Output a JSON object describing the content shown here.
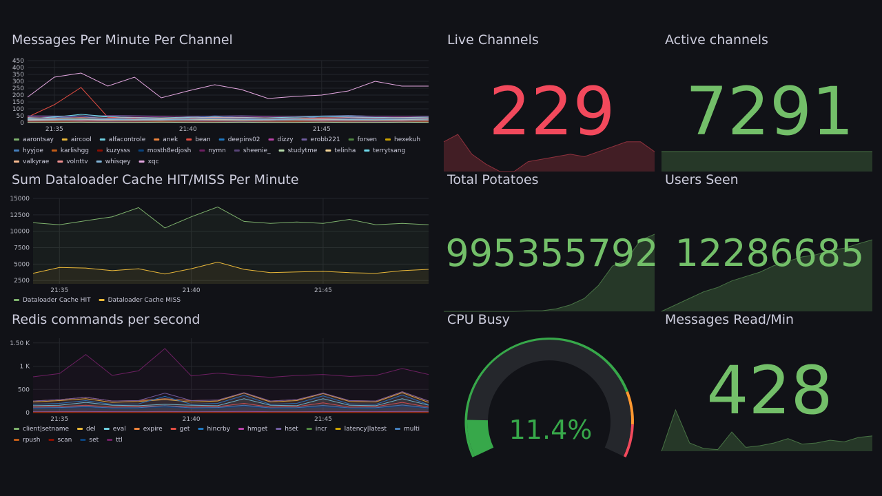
{
  "chart_data": [
    {
      "type": "line",
      "title": "Messages Per Minute Per Channel",
      "x": [
        "21:34",
        "21:35",
        "21:36",
        "21:37",
        "21:38",
        "21:39",
        "21:40",
        "21:41",
        "21:42",
        "21:43",
        "21:44",
        "21:45",
        "21:46",
        "21:47",
        "21:48",
        "21:49"
      ],
      "xticks": [
        "21:35",
        "21:40",
        "21:45"
      ],
      "ylim": [
        0,
        450
      ],
      "yticks": [
        0,
        50,
        100,
        150,
        200,
        250,
        300,
        350,
        400,
        450
      ],
      "grid": true,
      "fill": false,
      "series": [
        {
          "name": "aarontsay",
          "color": "#7eb26d",
          "values": [
            30,
            28,
            32,
            30,
            29,
            31,
            30,
            28,
            27,
            29,
            30,
            31,
            30,
            28,
            29,
            30
          ]
        },
        {
          "name": "aircool",
          "color": "#eab839",
          "values": [
            10,
            12,
            11,
            10,
            9,
            11,
            12,
            10,
            11,
            10,
            9,
            10,
            11,
            12,
            10,
            11
          ]
        },
        {
          "name": "alfacontrole",
          "color": "#6ed0e0",
          "values": [
            40,
            45,
            50,
            42,
            38,
            35,
            40,
            44,
            46,
            42,
            40,
            48,
            52,
            45,
            40,
            42
          ]
        },
        {
          "name": "anek",
          "color": "#ef843c",
          "values": [
            5,
            6,
            5,
            4,
            5,
            6,
            5,
            5,
            4,
            5,
            6,
            5,
            5,
            4,
            5,
            6
          ]
        },
        {
          "name": "bean",
          "color": "#e24d42",
          "values": [
            40,
            130,
            255,
            40,
            30,
            28,
            30,
            32,
            29,
            30,
            31,
            30,
            29,
            30,
            32,
            30
          ]
        },
        {
          "name": "deepins02",
          "color": "#1f78c1",
          "values": [
            20,
            35,
            45,
            30,
            25,
            28,
            30,
            50,
            35,
            30,
            28,
            45,
            40,
            35,
            30,
            32
          ]
        },
        {
          "name": "dizzy",
          "color": "#ba43a9",
          "values": [
            15,
            14,
            16,
            15,
            14,
            13,
            15,
            16,
            15,
            14,
            15,
            16,
            15,
            14,
            15,
            16
          ]
        },
        {
          "name": "erobb221",
          "color": "#705da0",
          "values": [
            50,
            48,
            45,
            52,
            50,
            47,
            45,
            48,
            50,
            46,
            44,
            48,
            50,
            47,
            45,
            46
          ]
        },
        {
          "name": "forsen",
          "color": "#508642",
          "values": [
            8,
            9,
            8,
            7,
            8,
            9,
            8,
            8,
            7,
            8,
            9,
            8,
            8,
            7,
            8,
            9
          ]
        },
        {
          "name": "hexekuh",
          "color": "#cca300",
          "values": [
            12,
            13,
            12,
            11,
            12,
            13,
            12,
            12,
            11,
            12,
            13,
            12,
            12,
            11,
            12,
            13
          ]
        },
        {
          "name": "hyyjoe",
          "color": "#447ebc",
          "values": [
            25,
            30,
            35,
            28,
            26,
            30,
            32,
            30,
            28,
            30,
            33,
            35,
            30,
            28,
            30,
            32
          ]
        },
        {
          "name": "karlishgg",
          "color": "#c15c17",
          "values": [
            6,
            7,
            6,
            5,
            6,
            7,
            6,
            6,
            5,
            6,
            7,
            6,
            6,
            5,
            6,
            7
          ]
        },
        {
          "name": "kuzysss",
          "color": "#890f02",
          "values": [
            3,
            4,
            3,
            3,
            4,
            3,
            3,
            4,
            3,
            3,
            4,
            3,
            3,
            4,
            3,
            3
          ]
        },
        {
          "name": "mosth8edjosh",
          "color": "#0a437c",
          "values": [
            18,
            20,
            22,
            19,
            18,
            20,
            21,
            19,
            18,
            20,
            22,
            21,
            19,
            18,
            20,
            21
          ]
        },
        {
          "name": "nymn",
          "color": "#6d1f62",
          "values": [
            45,
            40,
            48,
            50,
            44,
            42,
            46,
            48,
            44,
            42,
            45,
            47,
            46,
            44,
            42,
            45
          ]
        },
        {
          "name": "sheenie_",
          "color": "#584477",
          "values": [
            10,
            11,
            10,
            9,
            10,
            11,
            10,
            10,
            9,
            10,
            11,
            10,
            10,
            9,
            10,
            11
          ]
        },
        {
          "name": "studytme",
          "color": "#b7dbab",
          "values": [
            2,
            2,
            3,
            2,
            2,
            3,
            2,
            2,
            3,
            2,
            2,
            3,
            2,
            2,
            3,
            2
          ]
        },
        {
          "name": "telinha",
          "color": "#f4d598",
          "values": [
            22,
            24,
            23,
            21,
            22,
            24,
            23,
            22,
            21,
            22,
            24,
            23,
            22,
            21,
            22,
            24
          ]
        },
        {
          "name": "terrytsang",
          "color": "#70dbed",
          "values": [
            30,
            40,
            60,
            45,
            35,
            30,
            35,
            40,
            38,
            35,
            40,
            45,
            42,
            38,
            36,
            40
          ]
        },
        {
          "name": "valkyrae",
          "color": "#f9ba8f",
          "values": [
            14,
            15,
            14,
            13,
            14,
            15,
            14,
            14,
            13,
            14,
            15,
            14,
            14,
            13,
            14,
            15
          ]
        },
        {
          "name": "volnttv",
          "color": "#f29191",
          "values": [
            35,
            33,
            36,
            34,
            35,
            33,
            34,
            36,
            35,
            34,
            33,
            35,
            36,
            34,
            35,
            34
          ]
        },
        {
          "name": "whisqey",
          "color": "#82b5d8",
          "values": [
            20,
            22,
            25,
            23,
            21,
            22,
            24,
            26,
            23,
            22,
            24,
            25,
            23,
            22,
            24,
            25
          ]
        },
        {
          "name": "xqc",
          "color": "#e5a8e2",
          "values": [
            185,
            330,
            360,
            265,
            330,
            180,
            230,
            275,
            240,
            175,
            190,
            200,
            230,
            300,
            265,
            265
          ]
        }
      ]
    },
    {
      "type": "line",
      "title": "Sum Dataloader Cache HIT/MISS Per Minute",
      "x": [
        "21:34",
        "21:35",
        "21:36",
        "21:37",
        "21:38",
        "21:39",
        "21:40",
        "21:41",
        "21:42",
        "21:43",
        "21:44",
        "21:45",
        "21:46",
        "21:47",
        "21:48",
        "21:49"
      ],
      "xticks": [
        "21:35",
        "21:40",
        "21:45"
      ],
      "ylim": [
        2000,
        15000
      ],
      "yticks": [
        2500,
        5000,
        7500,
        10000,
        12500,
        15000
      ],
      "grid": true,
      "fill": true,
      "series": [
        {
          "name": "Dataloader Cache HIT",
          "color": "#7eb26d",
          "values": [
            11300,
            11000,
            11600,
            12200,
            13600,
            10500,
            12200,
            13700,
            11500,
            11200,
            11400,
            11200,
            11800,
            11000,
            11200,
            11000
          ]
        },
        {
          "name": "Dataloader Cache MISS",
          "color": "#eab839",
          "values": [
            3600,
            4500,
            4400,
            4000,
            4300,
            3500,
            4300,
            5300,
            4200,
            3700,
            3800,
            3900,
            3700,
            3600,
            4000,
            4200
          ]
        }
      ]
    },
    {
      "type": "line",
      "title": "Redis commands per second",
      "x": [
        "21:34",
        "21:35",
        "21:36",
        "21:37",
        "21:38",
        "21:39",
        "21:40",
        "21:41",
        "21:42",
        "21:43",
        "21:44",
        "21:45",
        "21:46",
        "21:47",
        "21:48",
        "21:49"
      ],
      "xticks": [
        "21:35",
        "21:40",
        "21:45"
      ],
      "ylim": [
        0,
        1600
      ],
      "yticks": [
        0,
        500,
        {
          "value": 1000,
          "label": "1 K"
        },
        {
          "value": 1500,
          "label": "1.50 K"
        }
      ],
      "grid": true,
      "fill": true,
      "series": [
        {
          "name": "client|setname",
          "color": "#7eb26d",
          "values": [
            5,
            5,
            6,
            5,
            5,
            6,
            5,
            5,
            6,
            5,
            5,
            6,
            5,
            5,
            6,
            5
          ]
        },
        {
          "name": "del",
          "color": "#eab839",
          "values": [
            230,
            260,
            300,
            220,
            240,
            280,
            230,
            250,
            420,
            230,
            260,
            410,
            240,
            230,
            430,
            220
          ]
        },
        {
          "name": "eval",
          "color": "#6ed0e0",
          "values": [
            150,
            160,
            220,
            160,
            150,
            180,
            160,
            150,
            300,
            160,
            150,
            300,
            160,
            150,
            300,
            160
          ]
        },
        {
          "name": "expire",
          "color": "#ef843c",
          "values": [
            250,
            280,
            330,
            250,
            260,
            300,
            260,
            270,
            430,
            250,
            280,
            420,
            260,
            250,
            450,
            250
          ]
        },
        {
          "name": "get",
          "color": "#e24d42",
          "values": [
            120,
            130,
            160,
            120,
            130,
            150,
            120,
            130,
            200,
            120,
            130,
            210,
            120,
            130,
            220,
            120
          ]
        },
        {
          "name": "hincrby",
          "color": "#1f78c1",
          "values": [
            180,
            200,
            260,
            180,
            190,
            350,
            180,
            200,
            370,
            180,
            200,
            360,
            190,
            180,
            380,
            170
          ]
        },
        {
          "name": "hmget",
          "color": "#ba43a9",
          "values": [
            20,
            22,
            25,
            20,
            21,
            24,
            20,
            22,
            25,
            21,
            20,
            24,
            22,
            21,
            25,
            20
          ]
        },
        {
          "name": "hset",
          "color": "#705da0",
          "values": [
            250,
            280,
            330,
            250,
            260,
            420,
            260,
            270,
            430,
            250,
            280,
            420,
            260,
            250,
            450,
            250
          ]
        },
        {
          "name": "incr",
          "color": "#508642",
          "values": [
            10,
            11,
            10,
            9,
            10,
            11,
            10,
            10,
            9,
            10,
            11,
            10,
            10,
            9,
            10,
            11
          ]
        },
        {
          "name": "latency|latest",
          "color": "#cca300",
          "values": [
            2,
            2,
            3,
            2,
            2,
            3,
            2,
            2,
            3,
            2,
            2,
            3,
            2,
            2,
            3,
            2
          ]
        },
        {
          "name": "multi",
          "color": "#447ebc",
          "values": [
            100,
            110,
            130,
            100,
            105,
            150,
            100,
            110,
            160,
            100,
            105,
            155,
            100,
            105,
            165,
            100
          ]
        },
        {
          "name": "rpush",
          "color": "#c15c17",
          "values": [
            8,
            9,
            8,
            7,
            8,
            9,
            8,
            8,
            7,
            8,
            9,
            8,
            8,
            7,
            8,
            9
          ]
        },
        {
          "name": "scan",
          "color": "#890f02",
          "values": [
            1,
            1,
            2,
            1,
            1,
            2,
            1,
            1,
            2,
            1,
            1,
            2,
            1,
            1,
            2,
            1
          ]
        },
        {
          "name": "set",
          "color": "#0a437c",
          "values": [
            90,
            95,
            110,
            90,
            92,
            120,
            90,
            95,
            130,
            90,
            95,
            125,
            92,
            90,
            135,
            90
          ]
        },
        {
          "name": "ttl",
          "color": "#6d1f62",
          "values": [
            770,
            840,
            1250,
            800,
            900,
            1380,
            790,
            850,
            800,
            760,
            800,
            820,
            780,
            800,
            950,
            820
          ]
        }
      ]
    },
    {
      "type": "stat",
      "title": "Live Channels",
      "value": 229,
      "color": "#f2495c",
      "sparkline": [
        233,
        236,
        228,
        224,
        221,
        221,
        225,
        226,
        227,
        228,
        227,
        229,
        231,
        233,
        233,
        229
      ]
    },
    {
      "type": "stat",
      "title": "Active channels",
      "value": 7291,
      "color": "#73bf69",
      "sparkline": [
        7291,
        7291,
        7291,
        7291,
        7291,
        7291,
        7291,
        7291,
        7291,
        7291,
        7291,
        7291,
        7291,
        7291,
        7291,
        7291
      ]
    },
    {
      "type": "stat",
      "title": "Total Potatoes",
      "value": 995355792,
      "color": "#73bf69",
      "sparkline": [
        995354600,
        995354600,
        995354600,
        995354600,
        995354600,
        995354600,
        995354610,
        995354610,
        995354640,
        995354700,
        995354800,
        995355000,
        995355300,
        995355400,
        995355700,
        995355792
      ]
    },
    {
      "type": "stat",
      "title": "Users Seen",
      "value": 12286685,
      "color": "#73bf69",
      "sparkline": [
        12283400,
        12283700,
        12284000,
        12284300,
        12284500,
        12284800,
        12285000,
        12285200,
        12285500,
        12285700,
        12285900,
        12286000,
        12286200,
        12286300,
        12286500,
        12286685
      ]
    },
    {
      "type": "gauge",
      "title": "CPU Busy",
      "value": 11.4,
      "value_label": "11.4%",
      "color": "#37a84a",
      "ylim": [
        0,
        100
      ],
      "thresholds": [
        {
          "value": 0,
          "color": "#37a84a"
        },
        {
          "value": 80,
          "color": "#ff9830"
        },
        {
          "value": 90,
          "color": "#f2495c"
        }
      ]
    },
    {
      "type": "stat",
      "title": "Messages Read/Min",
      "value": 428,
      "color": "#73bf69",
      "sparkline": [
        150,
        900,
        300,
        200,
        180,
        500,
        220,
        250,
        300,
        380,
        280,
        300,
        350,
        320,
        400,
        428
      ]
    }
  ]
}
